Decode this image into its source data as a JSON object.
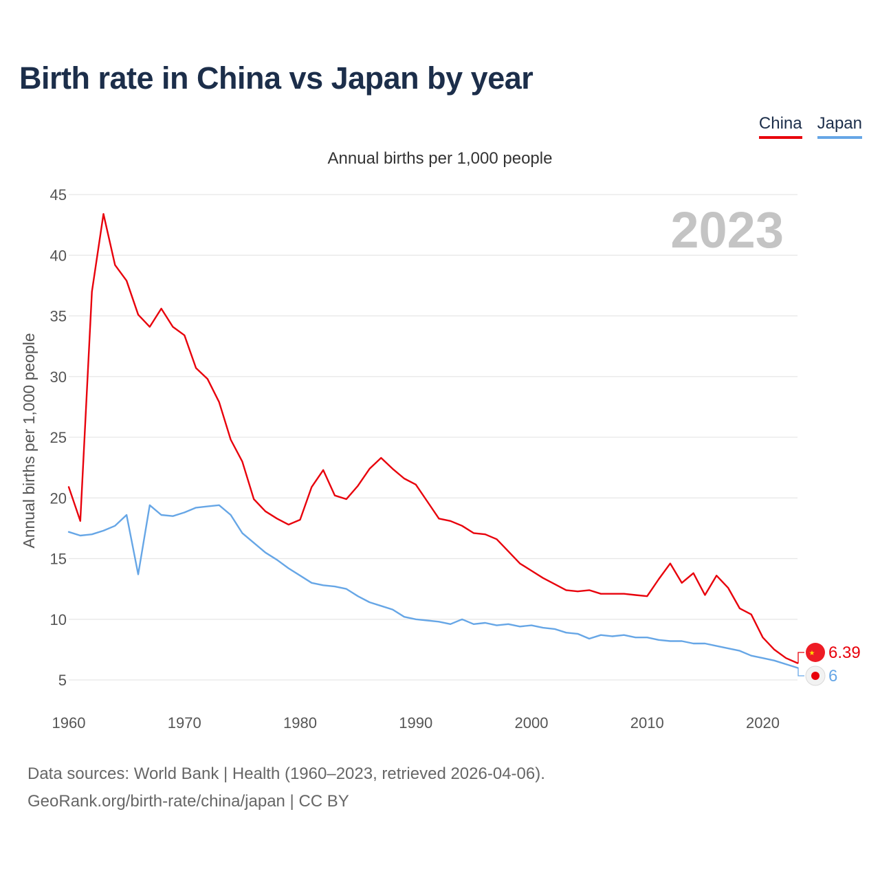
{
  "title": "Birth rate in China vs Japan by year",
  "legend": [
    {
      "name": "China",
      "color": "#e8000b"
    },
    {
      "name": "Japan",
      "color": "#66a6e6"
    }
  ],
  "subtitle": "Annual births per 1,000 people",
  "year_watermark": "2023",
  "footer": {
    "line1": "Data sources: World Bank | Health (1960–2023, retrieved 2026-04-06).",
    "line2": "GeoRank.org/birth-rate/china/japan | CC BY"
  },
  "chart_data": {
    "type": "line",
    "title": "Birth rate in China vs Japan by year",
    "xlabel": "",
    "ylabel": "Annual births per 1,000 people",
    "xlim": [
      1960,
      2023
    ],
    "ylim": [
      5,
      45
    ],
    "xticks": [
      1960,
      1970,
      1980,
      1990,
      2000,
      2010,
      2020
    ],
    "yticks": [
      5,
      10,
      15,
      20,
      25,
      30,
      35,
      40,
      45
    ],
    "grid": true,
    "legend_position": "top-right",
    "x": [
      1960,
      1961,
      1962,
      1963,
      1964,
      1965,
      1966,
      1967,
      1968,
      1969,
      1970,
      1971,
      1972,
      1973,
      1974,
      1975,
      1976,
      1977,
      1978,
      1979,
      1980,
      1981,
      1982,
      1983,
      1984,
      1985,
      1986,
      1987,
      1988,
      1989,
      1990,
      1991,
      1992,
      1993,
      1994,
      1995,
      1996,
      1997,
      1998,
      1999,
      2000,
      2001,
      2002,
      2003,
      2004,
      2005,
      2006,
      2007,
      2008,
      2009,
      2010,
      2011,
      2012,
      2013,
      2014,
      2015,
      2016,
      2017,
      2018,
      2019,
      2020,
      2021,
      2022,
      2023
    ],
    "series": [
      {
        "name": "China",
        "color": "#e8000b",
        "end_label": "6.39",
        "values": [
          20.9,
          18.1,
          37.0,
          43.4,
          39.2,
          37.9,
          35.1,
          34.1,
          35.6,
          34.1,
          33.4,
          30.7,
          29.8,
          27.9,
          24.8,
          23.0,
          19.9,
          18.9,
          18.3,
          17.8,
          18.2,
          20.9,
          22.3,
          20.2,
          19.9,
          21.0,
          22.4,
          23.3,
          22.4,
          21.6,
          21.1,
          19.7,
          18.3,
          18.1,
          17.7,
          17.1,
          17.0,
          16.6,
          15.6,
          14.6,
          14.0,
          13.4,
          12.9,
          12.4,
          12.3,
          12.4,
          12.1,
          12.1,
          12.1,
          12.0,
          11.9,
          13.3,
          14.6,
          13.0,
          13.8,
          12.0,
          13.6,
          12.6,
          10.9,
          10.4,
          8.5,
          7.5,
          6.8,
          6.39
        ]
      },
      {
        "name": "Japan",
        "color": "#66a6e6",
        "end_label": "6",
        "values": [
          17.2,
          16.9,
          17.0,
          17.3,
          17.7,
          18.6,
          13.7,
          19.4,
          18.6,
          18.5,
          18.8,
          19.2,
          19.3,
          19.4,
          18.6,
          17.1,
          16.3,
          15.5,
          14.9,
          14.2,
          13.6,
          13.0,
          12.8,
          12.7,
          12.5,
          11.9,
          11.4,
          11.1,
          10.8,
          10.2,
          10.0,
          9.9,
          9.8,
          9.6,
          10.0,
          9.6,
          9.7,
          9.5,
          9.6,
          9.4,
          9.5,
          9.3,
          9.2,
          8.9,
          8.8,
          8.4,
          8.7,
          8.6,
          8.7,
          8.5,
          8.5,
          8.3,
          8.2,
          8.2,
          8.0,
          8.0,
          7.8,
          7.6,
          7.4,
          7.0,
          6.8,
          6.6,
          6.3,
          6.0
        ]
      }
    ]
  }
}
